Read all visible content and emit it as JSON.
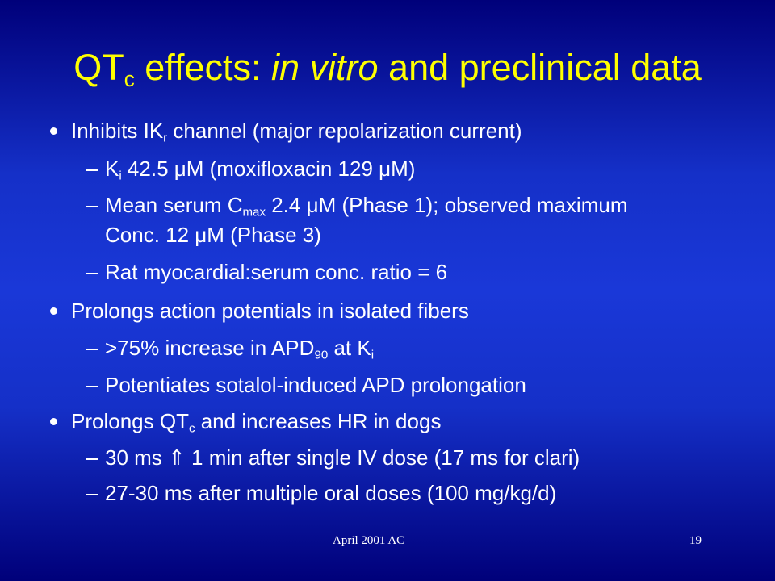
{
  "title": [
    "QT",
    "c",
    " effects: ",
    "in vitro",
    " and preclinical data"
  ],
  "bullets": [
    {
      "text": [
        "Inhibits IK",
        "r",
        " channel (major repolarization current)"
      ],
      "items": [
        [
          "K",
          "i",
          " 42.5 μM (moxifloxacin 129 μM)"
        ],
        [
          "Mean serum C",
          "max",
          " 2.4 μM (Phase 1); observed maximum Conc. 12 μM (Phase 3)"
        ],
        [
          "Rat myocardial:serum conc. ratio = 6"
        ]
      ]
    },
    {
      "text": [
        "Prolongs action potentials in isolated fibers"
      ],
      "items": [
        [
          ">75% increase in APD",
          "90",
          " at K",
          "i"
        ],
        [
          "Potentiates sotalol-induced APD prolongation"
        ]
      ]
    },
    {
      "text": [
        "Prolongs QT",
        "c",
        " and increases HR in dogs"
      ],
      "items": [
        [
          "30 ms ⇑ 1 min after single IV dose (17 ms for clari)"
        ],
        [
          "27-30 ms after multiple oral doses (100 mg/kg/d)"
        ]
      ]
    }
  ],
  "footer": {
    "left": "April 2001 AC",
    "page": "19"
  }
}
